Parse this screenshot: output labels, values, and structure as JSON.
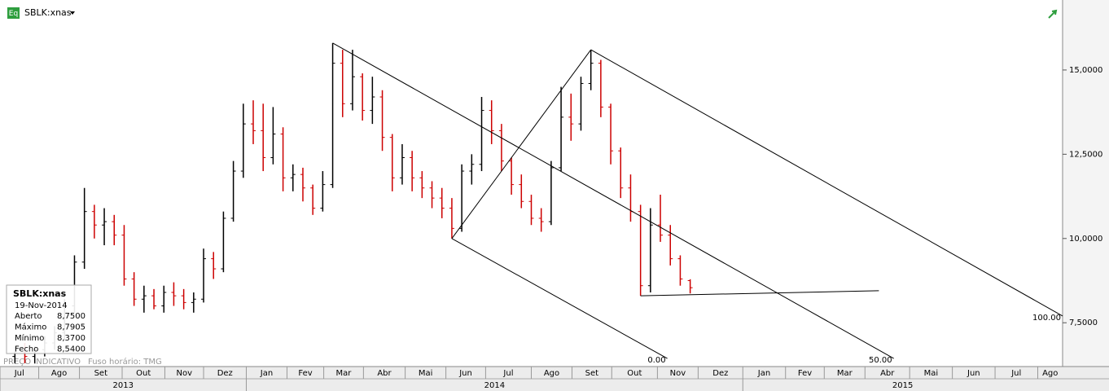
{
  "chart_data": {
    "type": "ohlc",
    "title": "SBLK:xnas",
    "icon": "Eq",
    "up_color": "#000000",
    "down_color": "#cc0000",
    "x": [
      0,
      1,
      2,
      3,
      4,
      5,
      6,
      7,
      8,
      9,
      10,
      11,
      12,
      13,
      14,
      15,
      16,
      17,
      18,
      19,
      20,
      21,
      22,
      23,
      24,
      25,
      26,
      27,
      28,
      29,
      30,
      31,
      32,
      33,
      34,
      35,
      36,
      37,
      38,
      39,
      40,
      41,
      42,
      43,
      44,
      45,
      46,
      47,
      48,
      49,
      50,
      51,
      52,
      53,
      54,
      55,
      56,
      57,
      58,
      59,
      60,
      61,
      62,
      63,
      64,
      65,
      66,
      67,
      68
    ],
    "open": [
      6.5,
      6.6,
      6.5,
      6.7,
      6.9,
      7.2,
      8.0,
      9.3,
      10.8,
      10.4,
      10.5,
      10.1,
      8.8,
      8.2,
      8.3,
      8.0,
      8.4,
      8.3,
      8.1,
      8.2,
      9.4,
      9.1,
      10.6,
      12.0,
      13.4,
      13.2,
      12.4,
      13.1,
      11.8,
      11.9,
      11.5,
      10.9,
      11.6,
      15.2,
      14.0,
      14.8,
      13.8,
      14.2,
      13.0,
      11.8,
      12.4,
      11.8,
      11.5,
      11.2,
      10.9,
      10.3,
      12.0,
      12.2,
      13.8,
      13.2,
      12.3,
      11.6,
      11.1,
      10.6,
      10.5,
      12.1,
      13.6,
      13.4,
      14.6,
      15.2,
      13.9,
      12.6,
      11.5,
      10.8,
      8.6,
      10.4,
      10.1,
      9.4,
      8.75
    ],
    "high": [
      6.8,
      6.9,
      6.8,
      7.1,
      7.4,
      8.2,
      9.5,
      11.5,
      11.0,
      10.9,
      10.7,
      10.4,
      9.0,
      8.6,
      8.5,
      8.6,
      8.7,
      8.5,
      8.4,
      9.7,
      9.6,
      10.8,
      12.3,
      14.0,
      14.1,
      14.0,
      13.9,
      13.3,
      12.2,
      12.1,
      11.6,
      12.0,
      15.8,
      15.6,
      15.6,
      14.9,
      14.8,
      14.4,
      13.1,
      12.8,
      12.6,
      12.0,
      11.7,
      11.5,
      11.2,
      12.2,
      12.5,
      14.2,
      14.1,
      13.4,
      12.4,
      11.9,
      11.3,
      10.9,
      12.3,
      14.5,
      14.3,
      14.8,
      15.6,
      15.3,
      14.0,
      12.7,
      11.9,
      11.0,
      10.9,
      11.3,
      10.4,
      9.5,
      8.7905
    ],
    "low": [
      6.3,
      6.3,
      6.3,
      6.5,
      6.7,
      7.0,
      7.8,
      9.1,
      10.0,
      9.8,
      9.8,
      8.6,
      8.0,
      7.8,
      7.9,
      7.8,
      8.0,
      7.9,
      7.8,
      8.1,
      8.8,
      9.0,
      10.5,
      11.8,
      12.8,
      12.0,
      12.2,
      11.4,
      11.4,
      11.1,
      10.7,
      10.8,
      11.5,
      13.6,
      13.8,
      13.5,
      13.4,
      12.6,
      11.4,
      11.6,
      11.4,
      11.2,
      10.9,
      10.6,
      10.0,
      10.2,
      11.6,
      12.0,
      12.8,
      12.0,
      11.3,
      10.9,
      10.4,
      10.2,
      10.4,
      12.0,
      12.9,
      13.2,
      14.4,
      13.6,
      12.2,
      11.2,
      10.5,
      8.3,
      8.4,
      9.9,
      9.2,
      8.6,
      8.37
    ],
    "close": [
      6.6,
      6.5,
      6.7,
      6.9,
      7.2,
      8.0,
      9.3,
      10.8,
      10.4,
      10.5,
      10.1,
      8.8,
      8.2,
      8.3,
      8.0,
      8.4,
      8.3,
      8.1,
      8.2,
      9.4,
      9.1,
      10.6,
      12.0,
      13.4,
      13.2,
      12.4,
      13.1,
      11.8,
      11.9,
      11.5,
      10.9,
      11.6,
      15.2,
      14.0,
      14.8,
      13.8,
      14.2,
      13.0,
      11.8,
      12.4,
      11.8,
      11.5,
      11.2,
      10.9,
      10.3,
      12.0,
      12.2,
      13.8,
      13.2,
      12.3,
      11.6,
      11.1,
      10.6,
      10.5,
      12.1,
      13.6,
      13.4,
      14.6,
      15.2,
      13.9,
      12.6,
      11.5,
      10.8,
      8.6,
      10.4,
      10.1,
      9.4,
      8.8,
      8.54
    ],
    "xlim": [
      -1.5,
      105.5
    ],
    "xticks": [
      {
        "value": -1.5,
        "label": "Jul"
      },
      {
        "value": 2.4,
        "label": "Ago"
      },
      {
        "value": 6.5,
        "label": "Set"
      },
      {
        "value": 10.8,
        "label": "Out"
      },
      {
        "value": 15.1,
        "label": "Nov"
      },
      {
        "value": 19.0,
        "label": "Dez"
      },
      {
        "value": 23.3,
        "label": "Jan"
      },
      {
        "value": 27.4,
        "label": "Fev"
      },
      {
        "value": 31.1,
        "label": "Mar"
      },
      {
        "value": 35.1,
        "label": "Abr"
      },
      {
        "value": 39.3,
        "label": "Mai"
      },
      {
        "value": 43.4,
        "label": "Jun"
      },
      {
        "value": 47.4,
        "label": "Jul"
      },
      {
        "value": 52.0,
        "label": "Ago"
      },
      {
        "value": 56.1,
        "label": "Set"
      },
      {
        "value": 60.1,
        "label": "Out"
      },
      {
        "value": 64.7,
        "label": "Nov"
      },
      {
        "value": 68.8,
        "label": "Dez"
      },
      {
        "value": 73.3,
        "label": "Jan"
      },
      {
        "value": 77.6,
        "label": "Fev"
      },
      {
        "value": 81.5,
        "label": "Mar"
      },
      {
        "value": 85.6,
        "label": "Abr"
      },
      {
        "value": 90.1,
        "label": "Mai"
      },
      {
        "value": 94.4,
        "label": "Jun"
      },
      {
        "value": 98.7,
        "label": "Jul"
      },
      {
        "value": 103.0,
        "label": "Ago"
      }
    ],
    "years": [
      {
        "value": -1.5,
        "label": "2013"
      },
      {
        "value": 23.3,
        "label": "2014"
      },
      {
        "value": 73.3,
        "label": "2015"
      }
    ],
    "ylim": [
      6.2,
      16.4
    ],
    "yticks": [
      {
        "value": 7.5,
        "label": "7,5000"
      },
      {
        "value": 10,
        "label": "10,0000"
      },
      {
        "value": 12.5,
        "label": "12,5000"
      },
      {
        "value": 15,
        "label": "15,0000"
      }
    ],
    "drawings": [
      {
        "points": [
          [
            44,
            10.0
          ],
          [
            58,
            15.6
          ]
        ]
      },
      {
        "points": [
          [
            58,
            15.6
          ],
          [
            105.5,
            7.7
          ]
        ],
        "label": "100.00"
      },
      {
        "points": [
          [
            32,
            15.8
          ],
          [
            88.5,
            6.44
          ]
        ],
        "label": "50.00"
      },
      {
        "points": [
          [
            44,
            10.0
          ],
          [
            65.7,
            6.44
          ]
        ],
        "label": "0.00"
      },
      {
        "points": [
          [
            63,
            8.3
          ],
          [
            87,
            8.45
          ]
        ]
      }
    ],
    "info": {
      "symbol": "SBLK:xnas",
      "date": "19-Nov-2014",
      "rows": [
        {
          "label": "Aberto",
          "value": "8,7500"
        },
        {
          "label": "Máximo",
          "value": "8,7905"
        },
        {
          "label": "Mínimo",
          "value": "8,3700"
        },
        {
          "label": "Fecho",
          "value": "8,5400"
        }
      ]
    },
    "notes": [
      "PREÇO INDICATIVO",
      "Fuso horário: TMG"
    ]
  }
}
